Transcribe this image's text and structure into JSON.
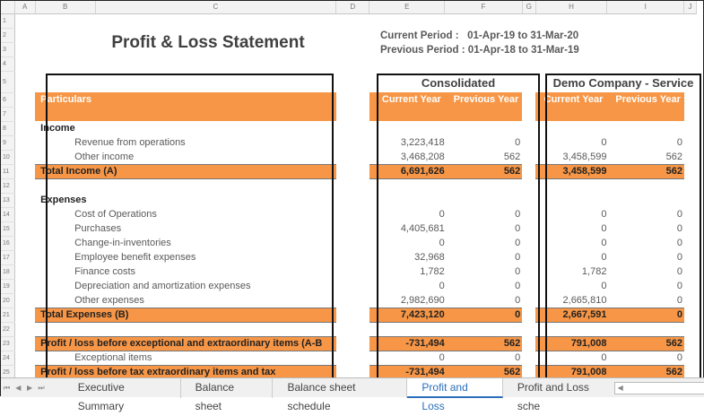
{
  "columns": [
    "",
    "A",
    "B",
    "C",
    "D",
    "E",
    "F",
    "G",
    "H",
    "I",
    "J"
  ],
  "title": "Profit & Loss Statement",
  "periods": {
    "current_label": "Current Period :",
    "current_value": "01-Apr-19 to 31-Mar-20",
    "previous_label": "Previous Period :",
    "previous_value": "01-Apr-18 to 31-Mar-19"
  },
  "entities": [
    "Consolidated",
    "Demo Company - Service"
  ],
  "header": {
    "particulars": "Particulars",
    "current_year": "Current Year",
    "previous_year": "Previous Year"
  },
  "rows": [
    {
      "n": "8",
      "type": "section",
      "label": "Income"
    },
    {
      "n": "9",
      "type": "item",
      "label": "Revenue from operations",
      "values": [
        "3,223,418",
        "0",
        "0",
        "0"
      ]
    },
    {
      "n": "10",
      "type": "item",
      "label": "Other income",
      "values": [
        "3,468,208",
        "562",
        "3,458,599",
        "562"
      ]
    },
    {
      "n": "11",
      "type": "total",
      "label": "Total Income (A)",
      "values": [
        "6,691,626",
        "562",
        "3,458,599",
        "562"
      ]
    },
    {
      "n": "12",
      "type": "blank"
    },
    {
      "n": "13",
      "type": "section",
      "label": "Expenses"
    },
    {
      "n": "14",
      "type": "item",
      "label": "Cost of Operations",
      "values": [
        "0",
        "0",
        "0",
        "0"
      ]
    },
    {
      "n": "15",
      "type": "item",
      "label": "Purchases",
      "values": [
        "4,405,681",
        "0",
        "0",
        "0"
      ]
    },
    {
      "n": "16",
      "type": "item",
      "label": "Change-in-inventories",
      "values": [
        "0",
        "0",
        "0",
        "0"
      ]
    },
    {
      "n": "17",
      "type": "item",
      "label": "Employee benefit expenses",
      "values": [
        "32,968",
        "0",
        "0",
        "0"
      ]
    },
    {
      "n": "18",
      "type": "item",
      "label": "Finance costs",
      "values": [
        "1,782",
        "0",
        "1,782",
        "0"
      ]
    },
    {
      "n": "19",
      "type": "item",
      "label": "Depreciation and amortization expenses",
      "values": [
        "0",
        "0",
        "0",
        "0"
      ]
    },
    {
      "n": "20",
      "type": "item",
      "label": "Other expenses",
      "values": [
        "2,982,690",
        "0",
        "2,665,810",
        "0"
      ]
    },
    {
      "n": "21",
      "type": "total",
      "label": "Total Expenses (B)",
      "values": [
        "7,423,120",
        "0",
        "2,667,591",
        "0"
      ]
    },
    {
      "n": "22",
      "type": "blank"
    },
    {
      "n": "23",
      "type": "total",
      "label": "Profit / loss before exceptional  and extraordinary items (A-B",
      "values": [
        "-731,494",
        "562",
        "791,008",
        "562"
      ]
    },
    {
      "n": "24",
      "type": "item",
      "label": "Exceptional items",
      "values": [
        "0",
        "0",
        "0",
        "0"
      ]
    },
    {
      "n": "25",
      "type": "total",
      "label": " Profit / loss before tax extraordinary items and tax",
      "values": [
        "-731,494",
        "562",
        "791,008",
        "562"
      ]
    }
  ],
  "sheet_tabs": [
    "Executive Summary",
    "Balance sheet",
    "Balance sheet schedule",
    "Profit and Loss",
    "Profit and Loss sche"
  ],
  "active_tab": "Profit and Loss",
  "colors": {
    "accent": "#f79646",
    "active_tab": "#2a6ebb"
  }
}
